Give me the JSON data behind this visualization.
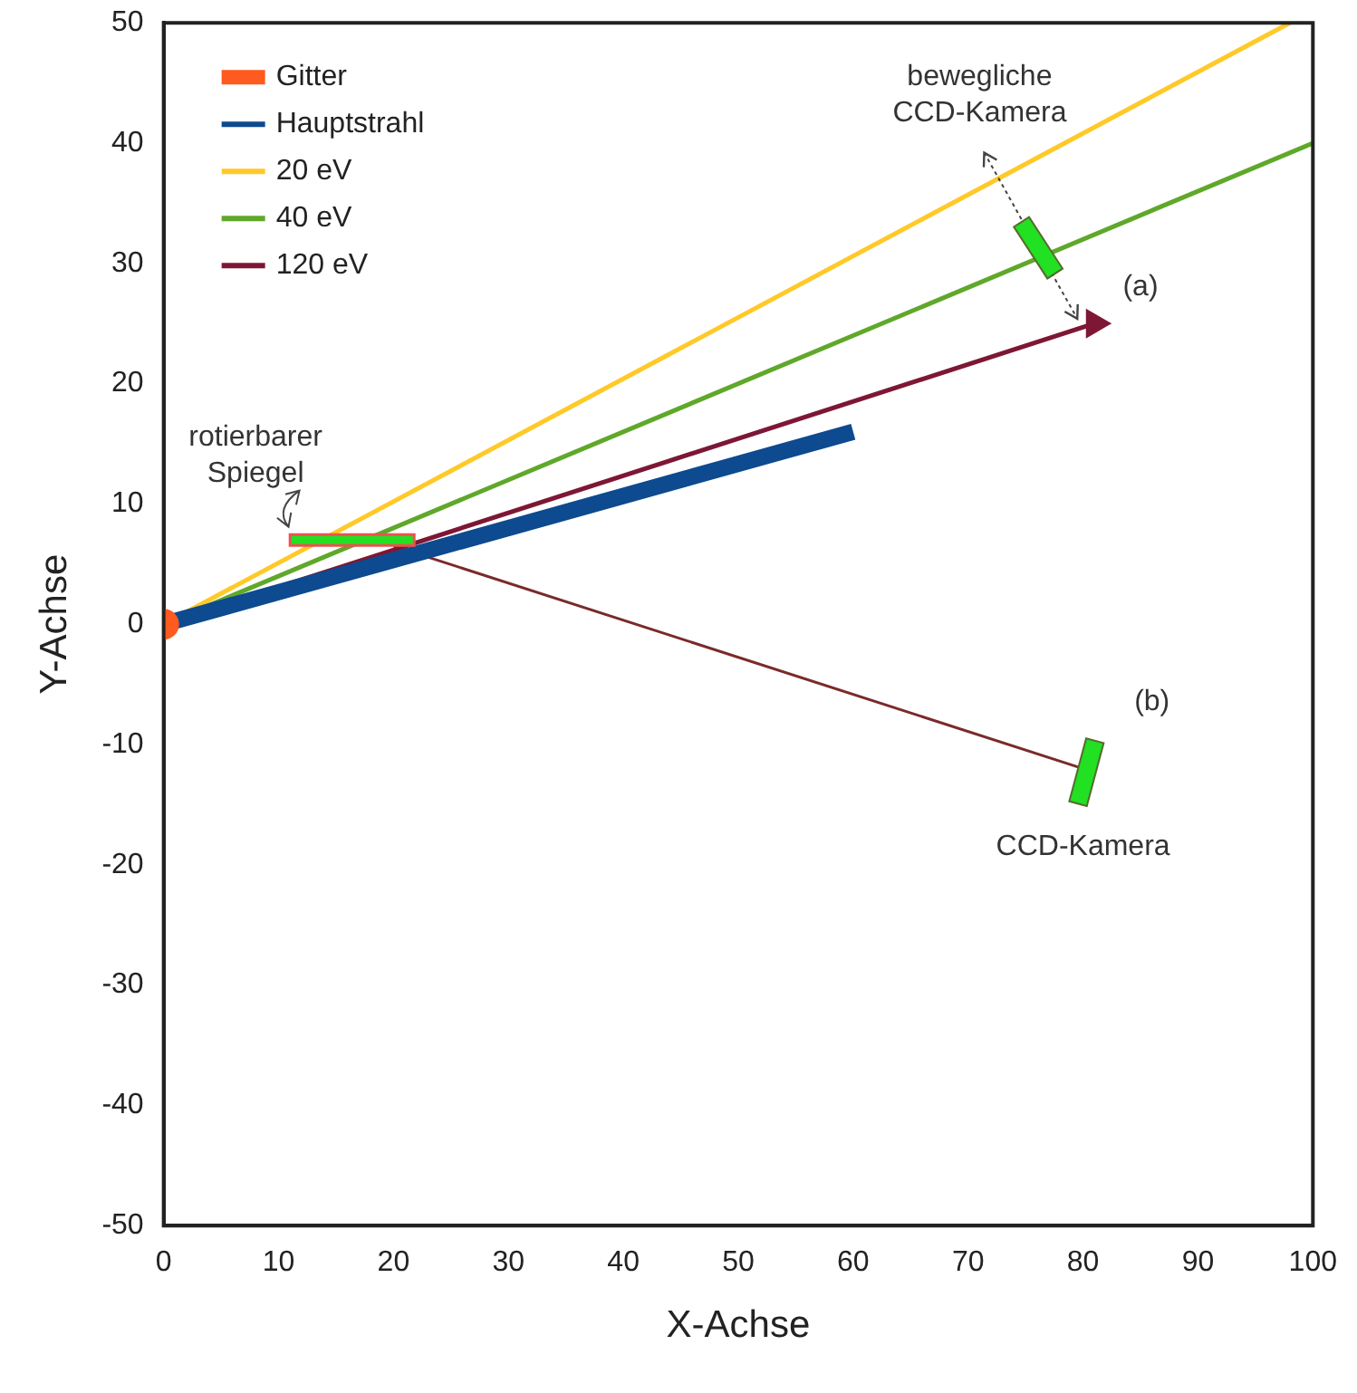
{
  "chart_data": {
    "type": "line",
    "xlabel": "X-Achse",
    "ylabel": "Y-Achse",
    "xlim": [
      0,
      100
    ],
    "ylim": [
      -50,
      50
    ],
    "xticks": [
      0,
      10,
      20,
      30,
      40,
      50,
      60,
      70,
      80,
      90,
      100
    ],
    "yticks": [
      -50,
      -40,
      -30,
      -20,
      -10,
      0,
      10,
      20,
      30,
      40,
      50
    ],
    "grid": false,
    "legend": "top left",
    "line_style": "solid",
    "series": [
      {
        "name": "Gitter",
        "type": "scatter",
        "color": "#ff5a1f",
        "marker": "circle",
        "x": [
          0
        ],
        "values": [
          0
        ]
      },
      {
        "name": "Hauptstrahl",
        "type": "line",
        "color": "#0d4a8f",
        "x": [
          0,
          60
        ],
        "values": [
          0,
          16
        ]
      },
      {
        "name": "20 eV",
        "type": "line",
        "color": "#ffc928",
        "x": [
          0,
          98
        ],
        "values": [
          0,
          50
        ]
      },
      {
        "name": "40 eV",
        "type": "line",
        "color": "#5fa82a",
        "x": [
          0,
          100
        ],
        "values": [
          0,
          40
        ]
      },
      {
        "name": "120 eV",
        "type": "line",
        "color": "#7d1735",
        "marker": "triangle",
        "x": [
          0,
          81
        ],
        "values": [
          0,
          25
        ]
      },
      {
        "type": "line",
        "color": "#7a2a2a",
        "x": [
          20,
          80
        ],
        "values": [
          6.5,
          -12
        ]
      }
    ],
    "annotations": [
      "bewegliche CCD-Kamera",
      "(a)",
      "rotierbarer Spiegel",
      "(b)",
      "CCD-Kamera"
    ]
  }
}
